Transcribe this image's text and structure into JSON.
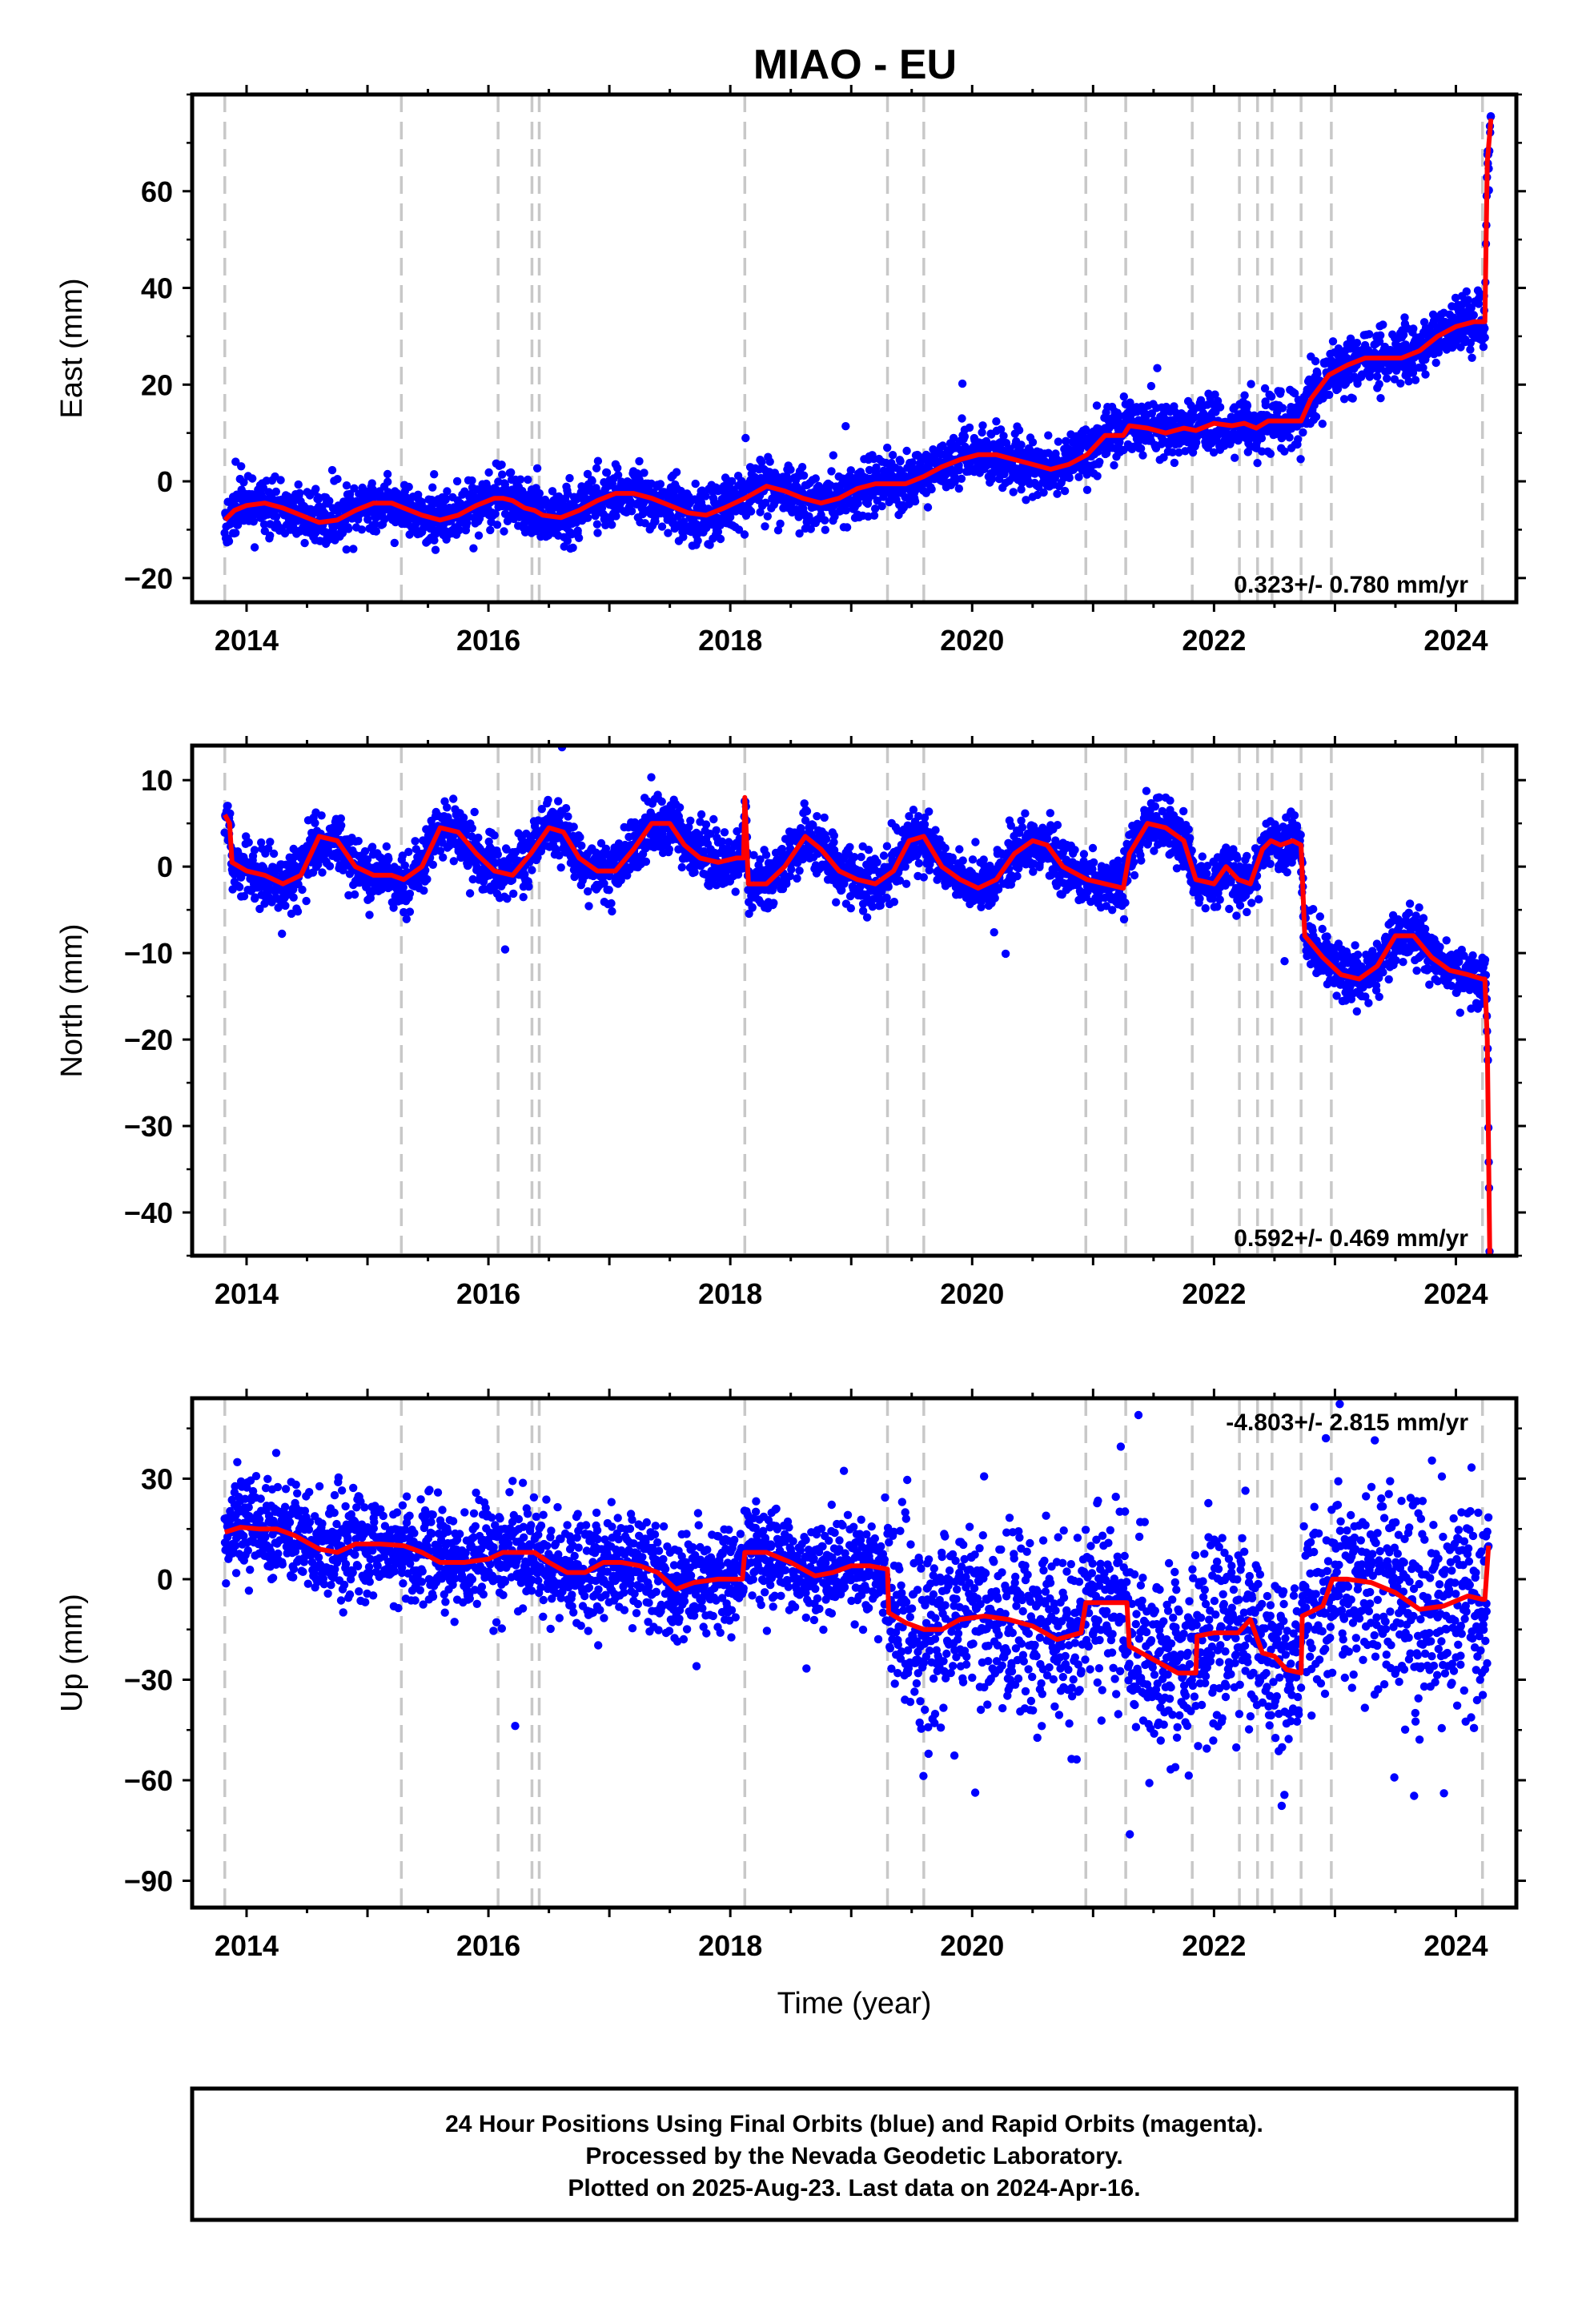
{
  "title": "MIAO - EU",
  "colors": {
    "points": "#0000ff",
    "model": "#ff0000",
    "steps": "#c8c8c8",
    "frame": "#000000"
  },
  "chart_data": [
    {
      "type": "scatter",
      "component": "east",
      "ylabel": "East (mm)",
      "ylim": [
        -25,
        80
      ],
      "xlim": [
        2013.55,
        2024.5
      ],
      "yticks": [
        -20,
        0,
        20,
        40,
        60
      ],
      "xticks": [
        2014,
        2016,
        2018,
        2020,
        2022,
        2024
      ],
      "rate_label": "0.323+/- 0.780 mm/yr",
      "rate_position": "bottom-right",
      "model_series": {
        "x": [
          2013.82,
          2013.9,
          2014.0,
          2014.15,
          2014.3,
          2014.45,
          2014.6,
          2014.75,
          2014.9,
          2015.05,
          2015.2,
          2015.3,
          2015.45,
          2015.6,
          2015.75,
          2015.9,
          2016.05,
          2016.12,
          2016.2,
          2016.3,
          2016.38,
          2016.45,
          2016.6,
          2016.75,
          2016.9,
          2017.05,
          2017.2,
          2017.35,
          2017.5,
          2017.65,
          2017.8,
          2017.95,
          2018.12,
          2018.3,
          2018.45,
          2018.6,
          2018.75,
          2018.9,
          2019.05,
          2019.2,
          2019.31,
          2019.45,
          2019.6,
          2019.75,
          2019.9,
          2020.05,
          2020.2,
          2020.35,
          2020.5,
          2020.65,
          2020.8,
          2020.95,
          2021.1,
          2021.25,
          2021.3,
          2021.45,
          2021.6,
          2021.75,
          2021.85,
          2022.0,
          2022.15,
          2022.25,
          2022.35,
          2022.45,
          2022.55,
          2022.6,
          2022.72,
          2022.8,
          2022.95,
          2023.1,
          2023.25,
          2023.4,
          2023.55,
          2023.7,
          2023.85,
          2024.0,
          2024.15,
          2024.22,
          2024.24,
          2024.26,
          2024.29
        ],
        "y": [
          -8,
          -6,
          -5,
          -4.5,
          -5.5,
          -7,
          -8.5,
          -8,
          -6,
          -4.5,
          -4.5,
          -5.5,
          -7,
          -8,
          -7,
          -5,
          -3.5,
          -3.5,
          -4,
          -5.5,
          -6,
          -7,
          -7.5,
          -6,
          -4,
          -2.5,
          -2.5,
          -3.5,
          -5,
          -6.5,
          -7,
          -5.5,
          -3.5,
          -1,
          -2,
          -3.5,
          -4.5,
          -3.5,
          -1.5,
          -0.5,
          -0.5,
          -0.5,
          1,
          3,
          4.5,
          5.5,
          5.5,
          4.5,
          3.5,
          2.5,
          3.5,
          5.5,
          9.5,
          9.5,
          11.5,
          11,
          10,
          11,
          10.5,
          12,
          11.5,
          12,
          11,
          12.5,
          12.5,
          12.5,
          12.5,
          17,
          22,
          24,
          25.5,
          25.5,
          25.5,
          27,
          30,
          32,
          33,
          33,
          33,
          66,
          75
        ]
      },
      "points_approx": {
        "count": 3450,
        "seed": 11,
        "scatter_mm": 2.8
      }
    },
    {
      "type": "scatter",
      "component": "north",
      "ylabel": "North (mm)",
      "ylim": [
        -45,
        14
      ],
      "xlim": [
        2013.55,
        2024.5
      ],
      "yticks": [
        -40,
        -30,
        -20,
        -10,
        0,
        10
      ],
      "xticks": [
        2014,
        2016,
        2018,
        2020,
        2022,
        2024
      ],
      "rate_label": "0.592+/- 0.469 mm/yr",
      "rate_position": "bottom-right",
      "model_series": {
        "x": [
          2013.82,
          2013.86,
          2013.88,
          2014.0,
          2014.15,
          2014.3,
          2014.45,
          2014.6,
          2014.75,
          2014.9,
          2015.05,
          2015.2,
          2015.3,
          2015.45,
          2015.6,
          2015.75,
          2015.9,
          2016.05,
          2016.2,
          2016.35,
          2016.5,
          2016.62,
          2016.75,
          2016.9,
          2017.05,
          2017.2,
          2017.35,
          2017.5,
          2017.62,
          2017.75,
          2017.9,
          2018.05,
          2018.11,
          2018.12,
          2018.15,
          2018.3,
          2018.45,
          2018.62,
          2018.75,
          2018.9,
          2019.05,
          2019.2,
          2019.35,
          2019.48,
          2019.6,
          2019.75,
          2019.9,
          2020.05,
          2020.2,
          2020.35,
          2020.5,
          2020.62,
          2020.75,
          2020.95,
          2021.1,
          2021.25,
          2021.3,
          2021.45,
          2021.6,
          2021.75,
          2021.85,
          2022.0,
          2022.1,
          2022.2,
          2022.3,
          2022.4,
          2022.47,
          2022.55,
          2022.65,
          2022.72,
          2022.75,
          2022.9,
          2023.05,
          2023.2,
          2023.35,
          2023.5,
          2023.65,
          2023.8,
          2023.95,
          2024.1,
          2024.22,
          2024.24,
          2024.26,
          2024.28
        ],
        "y": [
          6,
          5,
          0.5,
          -0.5,
          -1,
          -2,
          -1,
          3.5,
          3,
          0,
          -1,
          -1,
          -1.5,
          0,
          4.5,
          4,
          1.5,
          -0.5,
          -1,
          1.5,
          4.5,
          4,
          1,
          -0.5,
          -0.5,
          2,
          5,
          5,
          2.5,
          1,
          0.5,
          1,
          1,
          8,
          -2,
          -2,
          0,
          3.5,
          2,
          -0.5,
          -1.5,
          -2,
          -0.5,
          3,
          3.5,
          0,
          -1.5,
          -2.5,
          -1.5,
          1.5,
          3,
          2.5,
          0,
          -1.5,
          -2,
          -2.5,
          1.5,
          5,
          4.5,
          3,
          -1.5,
          -2,
          0,
          -1.5,
          -2,
          2,
          3,
          2.5,
          3,
          2.5,
          -8,
          -10.5,
          -12.5,
          -13,
          -11.5,
          -8,
          -8,
          -10.5,
          -12,
          -12.5,
          -13,
          -13,
          -20,
          -45
        ]
      },
      "points_approx": {
        "count": 3450,
        "seed": 23,
        "scatter_mm": 1.6
      }
    },
    {
      "type": "scatter",
      "component": "up",
      "ylabel": "Up (mm)",
      "xlabel": "Time (year)",
      "ylim": [
        -98,
        54
      ],
      "xlim": [
        2013.55,
        2024.5
      ],
      "yticks": [
        -90,
        -60,
        -30,
        0,
        30
      ],
      "xticks": [
        2014,
        2016,
        2018,
        2020,
        2022,
        2024
      ],
      "rate_label": "-4.803+/- 2.815 mm/yr",
      "rate_position": "top-right",
      "model_series": {
        "x": [
          2013.82,
          2013.95,
          2014.1,
          2014.25,
          2014.4,
          2014.6,
          2014.75,
          2014.9,
          2015.1,
          2015.3,
          2015.45,
          2015.6,
          2015.8,
          2016.0,
          2016.12,
          2016.25,
          2016.38,
          2016.5,
          2016.65,
          2016.8,
          2016.95,
          2017.1,
          2017.25,
          2017.4,
          2017.55,
          2017.7,
          2017.9,
          2018.1,
          2018.12,
          2018.3,
          2018.5,
          2018.7,
          2018.85,
          2019.0,
          2019.15,
          2019.3,
          2019.31,
          2019.45,
          2019.6,
          2019.75,
          2019.9,
          2020.1,
          2020.3,
          2020.5,
          2020.7,
          2020.9,
          2020.94,
          2021.1,
          2021.28,
          2021.3,
          2021.5,
          2021.7,
          2021.85,
          2021.86,
          2022.0,
          2022.2,
          2022.3,
          2022.4,
          2022.5,
          2022.6,
          2022.72,
          2022.73,
          2022.9,
          2022.98,
          2023.1,
          2023.3,
          2023.5,
          2023.7,
          2023.9,
          2024.1,
          2024.22,
          2024.24,
          2024.27
        ],
        "y": [
          14,
          15.5,
          15,
          15,
          13,
          9,
          8,
          10.5,
          10.5,
          10,
          8,
          5,
          5,
          6,
          8,
          8,
          8,
          5,
          2,
          2,
          5,
          5,
          4,
          2,
          -3,
          -1,
          0,
          0,
          8,
          8,
          5,
          1,
          2,
          4,
          4,
          3,
          -10,
          -13,
          -15,
          -15,
          -12,
          -11,
          -12,
          -14,
          -18,
          -16,
          -7,
          -7,
          -7,
          -20,
          -24,
          -28,
          -28,
          -17,
          -16,
          -16,
          -12,
          -22,
          -23,
          -27,
          -28,
          -11,
          -8,
          0,
          0,
          -1,
          -4,
          -9,
          -8,
          -5,
          -6,
          -6,
          10
        ]
      },
      "points_approx": {
        "count": 3450,
        "seed": 37,
        "scatter_mm": 10
      }
    }
  ],
  "step_lines_x": [
    2013.82,
    2015.28,
    2016.08,
    2016.36,
    2016.42,
    2018.12,
    2019.3,
    2019.6,
    2020.94,
    2021.27,
    2021.82,
    2022.21,
    2022.36,
    2022.48,
    2022.72,
    2022.97,
    2024.22
  ],
  "footer": {
    "line1": "24 Hour Positions Using Final Orbits (blue) and Rapid Orbits (magenta).",
    "line2": "Processed by the Nevada Geodetic Laboratory.",
    "line3": "Plotted on 2025-Aug-23. Last data on 2024-Apr-16."
  }
}
